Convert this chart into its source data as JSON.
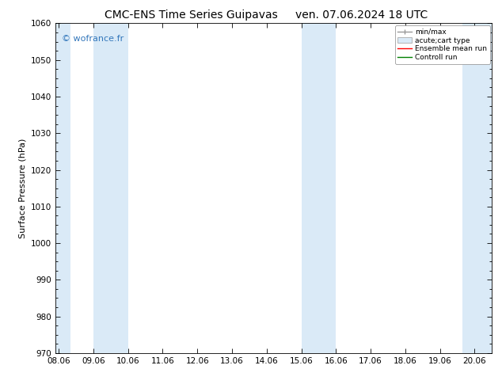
{
  "title": "CMC-ENS Time Series Guipavas",
  "title_right": "ven. 07.06.2024 18 UTC",
  "ylabel": "Surface Pressure (hPa)",
  "ylim": [
    970,
    1060
  ],
  "yticks": [
    970,
    980,
    990,
    1000,
    1010,
    1020,
    1030,
    1040,
    1050,
    1060
  ],
  "xtick_labels": [
    "08.06",
    "09.06",
    "10.06",
    "11.06",
    "12.06",
    "13.06",
    "14.06",
    "15.06",
    "16.06",
    "17.06",
    "18.06",
    "19.06",
    "20.06"
  ],
  "xtick_positions": [
    0,
    1,
    2,
    3,
    4,
    5,
    6,
    7,
    8,
    9,
    10,
    11,
    12
  ],
  "xlim_start": -0.1,
  "xlim_end": 12.5,
  "shaded_bands": [
    {
      "xmin": -0.1,
      "xmax": 0.35,
      "color": "#daeaf7"
    },
    {
      "xmin": 1.0,
      "xmax": 2.0,
      "color": "#daeaf7"
    },
    {
      "xmin": 7.0,
      "xmax": 8.0,
      "color": "#daeaf7"
    },
    {
      "xmin": 11.65,
      "xmax": 12.5,
      "color": "#daeaf7"
    }
  ],
  "watermark_text": "© wofrance.fr",
  "watermark_color": "#3377bb",
  "legend_entries": [
    {
      "label": "min/max",
      "color": "#999999",
      "lw": 1.0,
      "style": "errorbar"
    },
    {
      "label": "acute;cart type",
      "color": "#aaaaaa",
      "lw": 6,
      "style": "box"
    },
    {
      "label": "Ensemble mean run",
      "color": "red",
      "lw": 1.0,
      "style": "line"
    },
    {
      "label": "Controll run",
      "color": "green",
      "lw": 1.0,
      "style": "line"
    }
  ],
  "bg_color": "#ffffff",
  "plot_bg_color": "#ffffff",
  "title_fontsize": 10,
  "ylabel_fontsize": 8,
  "tick_fontsize": 7.5
}
